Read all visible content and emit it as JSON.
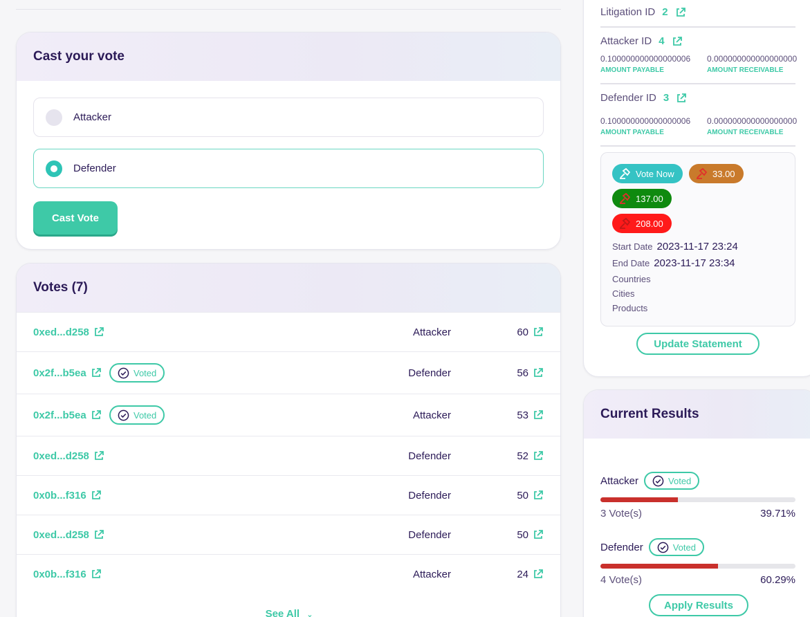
{
  "cast_vote": {
    "title": "Cast your vote",
    "options": [
      "Attacker",
      "Defender"
    ],
    "selected": "Defender",
    "button": "Cast Vote"
  },
  "votes": {
    "title": "Votes (7)",
    "see_all": "See All",
    "voted_label": "Voted",
    "rows": [
      {
        "address": "0xed...d258",
        "voted": false,
        "side": "Attacker",
        "value": "60"
      },
      {
        "address": "0x2f...b5ea",
        "voted": true,
        "side": "Defender",
        "value": "56"
      },
      {
        "address": "0x2f...b5ea",
        "voted": true,
        "side": "Attacker",
        "value": "53"
      },
      {
        "address": "0xed...d258",
        "voted": false,
        "side": "Defender",
        "value": "52"
      },
      {
        "address": "0x0b...f316",
        "voted": false,
        "side": "Defender",
        "value": "50"
      },
      {
        "address": "0xed...d258",
        "voted": false,
        "side": "Defender",
        "value": "50"
      },
      {
        "address": "0x0b...f316",
        "voted": false,
        "side": "Attacker",
        "value": "24"
      }
    ]
  },
  "details": {
    "litigation_label": "Litigation ID",
    "litigation_id": "2",
    "attacker_label": "Attacker ID",
    "attacker_id": "4",
    "attacker_payable": "0.100000000000000006",
    "attacker_receivable": "0.000000000000000000",
    "defender_label": "Defender ID",
    "defender_id": "3",
    "defender_payable": "0.100000000000000006",
    "defender_receivable": "0.000000000000000000",
    "amount_payable_label": "AMOUNT PAYABLE",
    "amount_receivable_label": "AMOUNT RECEIVABLE",
    "vote_now": "Vote Now",
    "stake_orange": "33.00",
    "stake_green": "137.00",
    "stake_red": "208.00",
    "start_label": "Start Date",
    "start_date": "2023-11-17 23:24",
    "end_label": "End Date",
    "end_date": "2023-11-17 23:34",
    "countries_label": "Countries",
    "cities_label": "Cities",
    "products_label": "Products",
    "update_button": "Update Statement"
  },
  "results": {
    "title": "Current Results",
    "voted_label": "Voted",
    "attacker": {
      "label": "Attacker",
      "votes": "3 Vote(s)",
      "percent_text": "39.71%",
      "percent": 39.71
    },
    "defender": {
      "label": "Defender",
      "votes": "4 Vote(s)",
      "percent_text": "60.29%",
      "percent": 60.29
    },
    "apply_button": "Apply Results"
  },
  "colors": {
    "accent": "#3ec9a7",
    "vote_now": "#35c3c4",
    "orange": "#c97a2b",
    "green": "#0f8a0f",
    "red": "#ff1a1a",
    "bar_fill": "#c9302c"
  }
}
